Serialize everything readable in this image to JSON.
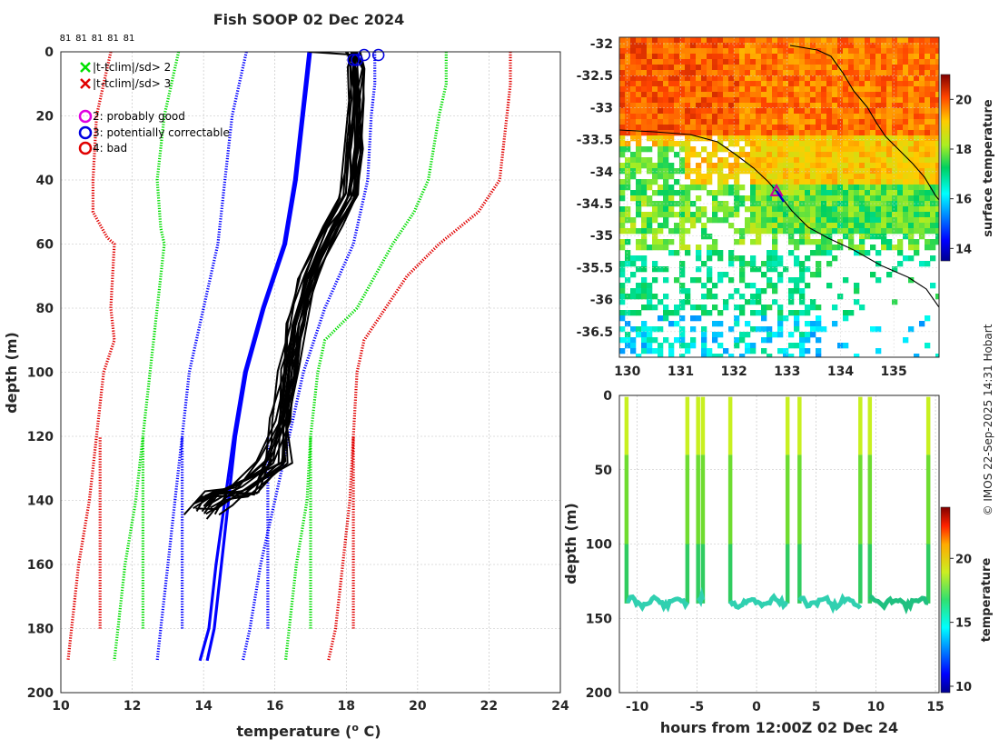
{
  "chart_data": [
    {
      "type": "line",
      "title": "Fish SOOP 02 Dec 2024",
      "xlabel": "temperature (",
      "xlabel_unit_sup": "o",
      "xlabel_unit": " C)",
      "ylabel": "depth (m)",
      "xlim": [
        10,
        24
      ],
      "ylim": [
        200,
        0
      ],
      "xticks": [
        10,
        12,
        14,
        16,
        18,
        20,
        22,
        24
      ],
      "yticks": [
        0,
        20,
        40,
        60,
        80,
        100,
        120,
        140,
        160,
        180,
        200
      ],
      "top_counts": [
        "81",
        "81",
        "81",
        "81",
        "81"
      ],
      "legend": [
        {
          "marker": "x",
          "color": "#00e000",
          "label": "|t-tclim|/sd> 2"
        },
        {
          "marker": "x",
          "color": "#e00000",
          "label": "|t-tclim|/sd> 3"
        },
        {
          "marker": "o",
          "color": "#e000e0",
          "label": "2: probably good"
        },
        {
          "marker": "o",
          "color": "#0000e0",
          "label": "3: potentially correctable"
        },
        {
          "marker": "o",
          "color": "#e00000",
          "label": "4: bad"
        }
      ],
      "series": [
        {
          "name": "climatology mean",
          "color": "#0000ff",
          "style": "solid",
          "points": [
            [
              17.0,
              0
            ],
            [
              16.9,
              10
            ],
            [
              16.8,
              20
            ],
            [
              16.6,
              40
            ],
            [
              16.3,
              60
            ],
            [
              15.7,
              80
            ],
            [
              15.2,
              100
            ],
            [
              14.9,
              120
            ],
            [
              14.7,
              140
            ],
            [
              14.5,
              160
            ],
            [
              14.3,
              180
            ],
            [
              14.1,
              190
            ]
          ]
        },
        {
          "name": "climatology mean 2",
          "color": "#0000ff",
          "style": "solid",
          "points": [
            [
              16.95,
              0
            ],
            [
              16.85,
              10
            ],
            [
              16.75,
              20
            ],
            [
              16.55,
              40
            ],
            [
              16.25,
              60
            ],
            [
              15.65,
              80
            ],
            [
              15.15,
              100
            ],
            [
              14.85,
              120
            ],
            [
              14.6,
              140
            ],
            [
              14.35,
              160
            ],
            [
              14.15,
              180
            ],
            [
              13.9,
              190
            ]
          ]
        },
        {
          "name": "blue dotted left inner",
          "color": "#0000ff",
          "style": "dotted",
          "points": [
            [
              15.2,
              0
            ],
            [
              15.0,
              10
            ],
            [
              14.8,
              20
            ],
            [
              14.6,
              40
            ],
            [
              14.4,
              60
            ],
            [
              14.0,
              80
            ],
            [
              13.6,
              100
            ],
            [
              13.4,
              120
            ],
            [
              13.2,
              140
            ],
            [
              13.0,
              160
            ],
            [
              12.8,
              180
            ],
            [
              12.7,
              190
            ]
          ]
        },
        {
          "name": "blue dotted left outer",
          "color": "#0000ff",
          "style": "dotted",
          "points": [
            [
              13.4,
              180
            ],
            [
              13.4,
              120
            ]
          ]
        },
        {
          "name": "blue dotted right",
          "color": "#0000ff",
          "style": "dotted",
          "points": [
            [
              18.8,
              0
            ],
            [
              18.8,
              10
            ],
            [
              18.7,
              20
            ],
            [
              18.6,
              40
            ],
            [
              18.2,
              60
            ],
            [
              17.4,
              80
            ],
            [
              16.8,
              100
            ],
            [
              16.4,
              120
            ],
            [
              16.0,
              140
            ],
            [
              15.6,
              160
            ],
            [
              15.3,
              180
            ],
            [
              15.1,
              190
            ]
          ]
        },
        {
          "name": "green dotted left",
          "color": "#00dd00",
          "style": "dotted",
          "points": [
            [
              13.3,
              0
            ],
            [
              13.1,
              10
            ],
            [
              12.9,
              20
            ],
            [
              12.7,
              40
            ],
            [
              12.8,
              55
            ],
            [
              12.9,
              60
            ],
            [
              12.7,
              80
            ],
            [
              12.5,
              100
            ],
            [
              12.3,
              120
            ],
            [
              12.1,
              140
            ],
            [
              11.8,
              160
            ],
            [
              11.6,
              180
            ],
            [
              11.5,
              190
            ]
          ]
        },
        {
          "name": "green dotted right",
          "color": "#00dd00",
          "style": "dotted",
          "points": [
            [
              20.8,
              0
            ],
            [
              20.8,
              10
            ],
            [
              20.6,
              20
            ],
            [
              20.3,
              40
            ],
            [
              19.9,
              50
            ],
            [
              19.3,
              60
            ],
            [
              18.3,
              80
            ],
            [
              17.4,
              90
            ],
            [
              17.2,
              100
            ],
            [
              17.0,
              120
            ],
            [
              16.9,
              140
            ],
            [
              16.6,
              160
            ],
            [
              16.4,
              180
            ],
            [
              16.3,
              190
            ]
          ]
        },
        {
          "name": "red dotted left",
          "color": "#e00000",
          "style": "dotted",
          "points": [
            [
              11.4,
              0
            ],
            [
              11.2,
              10
            ],
            [
              11.0,
              20
            ],
            [
              10.9,
              40
            ],
            [
              10.9,
              50
            ],
            [
              11.3,
              58
            ],
            [
              11.5,
              60
            ],
            [
              11.4,
              80
            ],
            [
              11.5,
              90
            ],
            [
              11.2,
              100
            ],
            [
              11.0,
              120
            ],
            [
              10.8,
              140
            ],
            [
              10.5,
              160
            ],
            [
              10.3,
              180
            ],
            [
              10.2,
              190
            ]
          ]
        },
        {
          "name": "red dotted right",
          "color": "#e00000",
          "style": "dotted",
          "points": [
            [
              22.6,
              0
            ],
            [
              22.6,
              10
            ],
            [
              22.5,
              20
            ],
            [
              22.3,
              40
            ],
            [
              21.7,
              50
            ],
            [
              20.6,
              60
            ],
            [
              19.7,
              70
            ],
            [
              18.8,
              85
            ],
            [
              18.5,
              90
            ],
            [
              18.3,
              100
            ],
            [
              18.2,
              120
            ],
            [
              18.1,
              140
            ],
            [
              17.9,
              160
            ],
            [
              17.7,
              180
            ],
            [
              17.5,
              190
            ]
          ]
        },
        {
          "name": "green dotted inner left",
          "color": "#00dd00",
          "style": "dotted",
          "points": [
            [
              12.3,
              180
            ],
            [
              12.3,
              120
            ]
          ]
        },
        {
          "name": "green dotted inner right",
          "color": "#00dd00",
          "style": "dotted",
          "points": [
            [
              17.0,
              180
            ],
            [
              17.0,
              120
            ]
          ]
        },
        {
          "name": "red dotted inner left",
          "color": "#e00000",
          "style": "dotted",
          "points": [
            [
              11.1,
              180
            ],
            [
              11.1,
              120
            ]
          ]
        },
        {
          "name": "red dotted inner right",
          "color": "#e00000",
          "style": "dotted",
          "points": [
            [
              18.2,
              180
            ],
            [
              18.2,
              120
            ]
          ]
        },
        {
          "name": "blue dotted inner right",
          "color": "#0000ff",
          "style": "dotted",
          "points": [
            [
              15.8,
              180
            ],
            [
              15.8,
              120
            ]
          ]
        }
      ],
      "profiles_base": [
        [
          18.2,
          0
        ],
        [
          18.3,
          5
        ],
        [
          18.3,
          15
        ],
        [
          18.25,
          30
        ],
        [
          18.1,
          45
        ],
        [
          17.6,
          55
        ],
        [
          17.0,
          70
        ],
        [
          16.6,
          85
        ],
        [
          16.4,
          100
        ],
        [
          16.2,
          115
        ],
        [
          16.0,
          128
        ],
        [
          15.2,
          136
        ],
        [
          14.4,
          140
        ],
        [
          14.0,
          143
        ]
      ],
      "profile_count": 18,
      "flag_markers": [
        {
          "x": 18.2,
          "y": 2.5,
          "color": "#0000e0"
        },
        {
          "x": 18.3,
          "y": 2.5,
          "color": "#0000e0"
        },
        {
          "x": 18.5,
          "y": 1,
          "color": "#0000e0"
        },
        {
          "x": 18.9,
          "y": 1,
          "color": "#0000e0"
        }
      ]
    },
    {
      "type": "heatmap",
      "xticks": [
        130,
        131,
        132,
        133,
        134,
        135
      ],
      "yticks": [
        -32,
        -32.5,
        -33,
        -33.5,
        -34,
        -34.5,
        -35,
        -35.5,
        -36,
        -36.5
      ],
      "xlim": [
        129.85,
        135.85
      ],
      "ylim": [
        -36.9,
        -31.9
      ],
      "colorbar_label": "surface temperature",
      "colorbar_ticks": [
        14,
        16,
        18,
        20
      ],
      "colorbar_range": [
        13.5,
        21
      ],
      "track_point": {
        "lon": 132.8,
        "lat": -34.3
      }
    },
    {
      "type": "scatter",
      "xlabel": "hours from 12:00Z 02 Dec 24",
      "ylabel": "depth (m)",
      "xticks": [
        -10,
        -5,
        0,
        5,
        10,
        15
      ],
      "yticks": [
        0,
        50,
        100,
        150,
        200
      ],
      "xlim": [
        -11.5,
        15.3
      ],
      "ylim": [
        200,
        0
      ],
      "colorbar_label": "temperature",
      "colorbar_ticks": [
        10,
        15,
        20
      ],
      "colorbar_range": [
        9.5,
        24
      ],
      "dives": [
        -10.9,
        -5.8,
        -4.9,
        -4.5,
        -2.2,
        2.6,
        3.6,
        8.7,
        9.5,
        14.4
      ],
      "bottom_segments": [
        [
          -10.9,
          -5.8
        ],
        [
          -4.9,
          -4.5
        ],
        [
          -2.2,
          2.6
        ],
        [
          3.6,
          8.7
        ],
        [
          9.5,
          14.4
        ]
      ]
    }
  ],
  "watermark": "© IMOS 22-Sep-2025 14:31 Hobart"
}
